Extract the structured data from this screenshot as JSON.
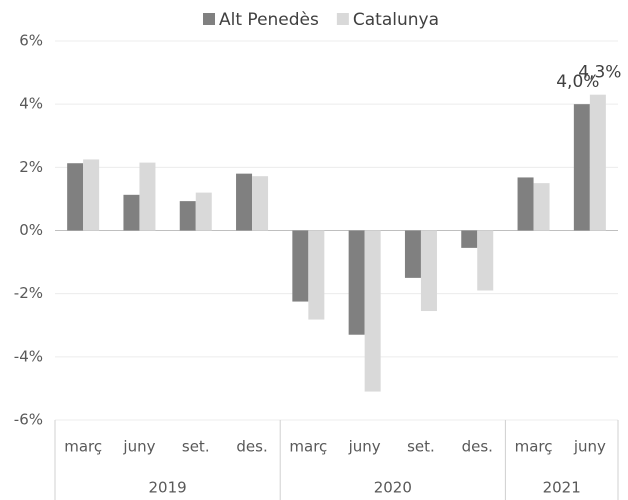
{
  "chart_data": {
    "type": "bar",
    "categories": [
      "març",
      "juny",
      "set.",
      "des.",
      "març",
      "juny",
      "set.",
      "des.",
      "març",
      "juny"
    ],
    "category_groups": [
      {
        "name": "2019",
        "count": 4
      },
      {
        "name": "2020",
        "count": 4
      },
      {
        "name": "2021",
        "count": 2
      }
    ],
    "series": [
      {
        "name": "Alt Penedès",
        "color": "#808080",
        "values": [
          2.13,
          1.13,
          0.93,
          1.8,
          -2.25,
          -3.3,
          -1.5,
          -0.55,
          1.68,
          4.0
        ],
        "value_labels": [
          null,
          null,
          null,
          null,
          null,
          null,
          null,
          null,
          null,
          "4,0%"
        ]
      },
      {
        "name": "Catalunya",
        "color": "#d9d9d9",
        "values": [
          2.25,
          2.15,
          1.2,
          1.72,
          -2.82,
          -5.1,
          -2.55,
          -1.9,
          1.5,
          4.3
        ],
        "value_labels": [
          null,
          null,
          null,
          null,
          null,
          null,
          null,
          null,
          null,
          "4,3%"
        ]
      }
    ],
    "ylim": [
      -6,
      6
    ],
    "yticks": [
      {
        "value": -6,
        "label": "-6%"
      },
      {
        "value": -4,
        "label": "-4%"
      },
      {
        "value": -2,
        "label": "-2%"
      },
      {
        "value": 0,
        "label": "0%"
      },
      {
        "value": 2,
        "label": "2%"
      },
      {
        "value": 4,
        "label": "4%"
      },
      {
        "value": 6,
        "label": "6%"
      }
    ],
    "grid": true,
    "legend": "top"
  }
}
